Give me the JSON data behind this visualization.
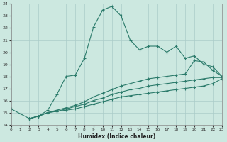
{
  "xlabel": "Humidex (Indice chaleur)",
  "background_color": "#cce8e0",
  "grid_color": "#aaccc8",
  "line_color": "#2a7a6a",
  "xlim": [
    0,
    23
  ],
  "ylim": [
    14,
    24
  ],
  "xticks": [
    0,
    1,
    2,
    3,
    4,
    5,
    6,
    7,
    8,
    9,
    10,
    11,
    12,
    13,
    14,
    15,
    16,
    17,
    18,
    19,
    20,
    21,
    22,
    23
  ],
  "yticks": [
    14,
    15,
    16,
    17,
    18,
    19,
    20,
    21,
    22,
    23,
    24
  ],
  "line1_x": [
    0,
    1,
    2,
    3,
    4,
    5,
    6,
    7,
    8,
    9,
    10,
    11,
    12,
    13,
    14,
    15,
    16,
    17,
    18,
    19,
    20,
    21,
    22,
    23
  ],
  "line1_y": [
    15.3,
    14.9,
    14.5,
    14.7,
    15.2,
    16.5,
    18.0,
    18.1,
    19.5,
    22.1,
    23.5,
    23.8,
    23.0,
    21.0,
    20.2,
    20.5,
    20.5,
    20.0,
    20.5,
    19.5,
    19.7,
    19.0,
    18.8,
    18.0
  ],
  "line2_x": [
    2,
    3,
    4,
    5,
    6,
    7,
    8,
    9,
    10,
    11,
    12,
    13,
    14,
    15,
    16,
    17,
    18,
    19,
    20,
    21,
    22,
    23
  ],
  "line2_y": [
    14.5,
    14.7,
    15.0,
    15.2,
    15.4,
    15.6,
    15.9,
    16.3,
    16.6,
    16.9,
    17.2,
    17.4,
    17.6,
    17.8,
    17.9,
    18.0,
    18.1,
    18.2,
    19.3,
    19.2,
    18.5,
    18.0
  ],
  "line3_x": [
    2,
    3,
    4,
    5,
    6,
    7,
    8,
    9,
    10,
    11,
    12,
    13,
    14,
    15,
    16,
    17,
    18,
    19,
    20,
    21,
    22,
    23
  ],
  "line3_y": [
    14.5,
    14.7,
    15.0,
    15.1,
    15.3,
    15.5,
    15.7,
    16.0,
    16.2,
    16.5,
    16.7,
    16.9,
    17.0,
    17.2,
    17.3,
    17.4,
    17.5,
    17.6,
    17.7,
    17.8,
    17.9,
    17.9
  ],
  "line4_x": [
    2,
    3,
    4,
    5,
    6,
    7,
    8,
    9,
    10,
    11,
    12,
    13,
    14,
    15,
    16,
    17,
    18,
    19,
    20,
    21,
    22,
    23
  ],
  "line4_y": [
    14.5,
    14.7,
    15.0,
    15.1,
    15.2,
    15.3,
    15.5,
    15.7,
    15.9,
    16.1,
    16.3,
    16.4,
    16.5,
    16.6,
    16.7,
    16.8,
    16.9,
    17.0,
    17.1,
    17.2,
    17.4,
    17.8
  ]
}
